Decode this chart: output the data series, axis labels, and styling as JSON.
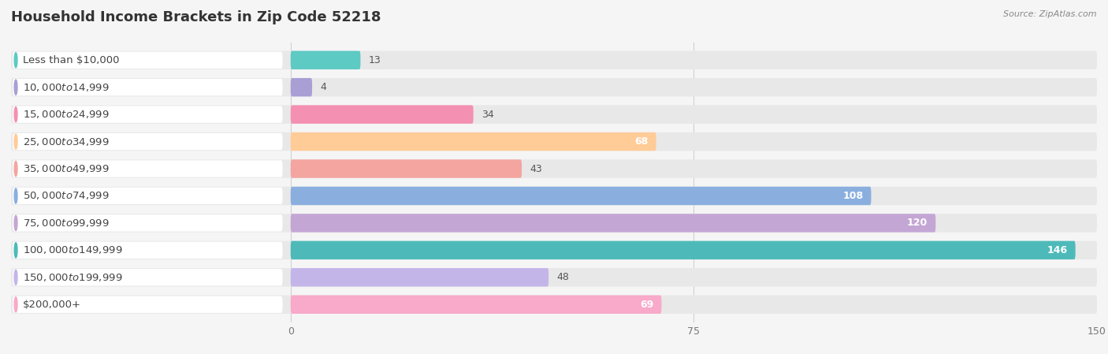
{
  "title": "Household Income Brackets in Zip Code 52218",
  "source": "Source: ZipAtlas.com",
  "categories": [
    "Less than $10,000",
    "$10,000 to $14,999",
    "$15,000 to $24,999",
    "$25,000 to $34,999",
    "$35,000 to $49,999",
    "$50,000 to $74,999",
    "$75,000 to $99,999",
    "$100,000 to $149,999",
    "$150,000 to $199,999",
    "$200,000+"
  ],
  "values": [
    13,
    4,
    34,
    68,
    43,
    108,
    120,
    146,
    48,
    69
  ],
  "colors": [
    "#5DCAC3",
    "#A99FD5",
    "#F490B2",
    "#FFCB97",
    "#F4A5A0",
    "#8AAFDF",
    "#C4A6D5",
    "#4DBAB9",
    "#C4B5E9",
    "#F9A9C9"
  ],
  "label_circle_colors": [
    "#5DCAC3",
    "#A99FD5",
    "#F490B2",
    "#FFCB97",
    "#F4A5A0",
    "#8AAFDF",
    "#C4A6D5",
    "#4DBAB9",
    "#C4B5E9",
    "#F9A9C9"
  ],
  "xlim": [
    0,
    150
  ],
  "xticks": [
    0,
    75,
    150
  ],
  "background_color": "#f5f5f5",
  "bar_bg_color": "#e8e8e8",
  "label_bg_color": "#ffffff",
  "title_fontsize": 13,
  "label_fontsize": 9.5,
  "value_fontsize": 9
}
